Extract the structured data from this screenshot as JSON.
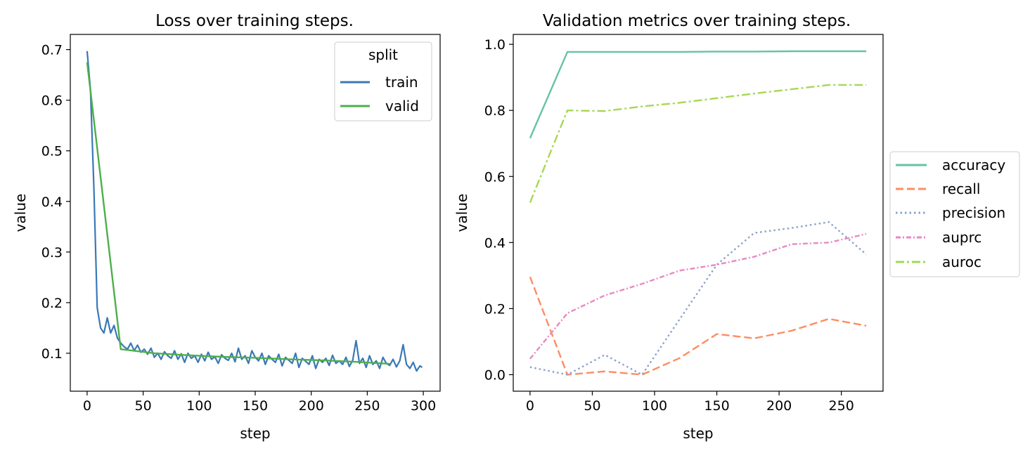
{
  "chart_data": [
    {
      "type": "line",
      "title": "Loss over training steps.",
      "xlabel": "step",
      "ylabel": "value",
      "xlim": [
        -15,
        315
      ],
      "ylim": [
        0.025,
        0.73
      ],
      "xticks": [
        0,
        50,
        100,
        150,
        200,
        250,
        300
      ],
      "yticks": [
        0.1,
        0.2,
        0.3,
        0.4,
        0.5,
        0.6,
        0.7
      ],
      "legend": {
        "title": "split",
        "position": "top-right"
      },
      "series": [
        {
          "name": "train",
          "color": "#3a78b5",
          "dash": "",
          "x": [
            0,
            3,
            6,
            9,
            12,
            15,
            18,
            21,
            24,
            27,
            30,
            33,
            36,
            39,
            42,
            45,
            48,
            51,
            54,
            57,
            60,
            63,
            66,
            69,
            72,
            75,
            78,
            81,
            84,
            87,
            90,
            93,
            96,
            99,
            102,
            105,
            108,
            111,
            114,
            117,
            120,
            123,
            126,
            129,
            132,
            135,
            138,
            141,
            144,
            147,
            150,
            153,
            156,
            159,
            162,
            165,
            168,
            171,
            174,
            177,
            180,
            183,
            186,
            189,
            192,
            195,
            198,
            201,
            204,
            207,
            210,
            213,
            216,
            219,
            222,
            225,
            228,
            231,
            234,
            237,
            240,
            243,
            246,
            249,
            252,
            255,
            258,
            261,
            264,
            267,
            270,
            273,
            276,
            279,
            282,
            285,
            288,
            291,
            294,
            297,
            299
          ],
          "y": [
            0.697,
            0.62,
            0.43,
            0.19,
            0.15,
            0.14,
            0.17,
            0.14,
            0.155,
            0.13,
            0.12,
            0.113,
            0.108,
            0.12,
            0.105,
            0.116,
            0.102,
            0.108,
            0.098,
            0.11,
            0.092,
            0.1,
            0.088,
            0.103,
            0.095,
            0.09,
            0.105,
            0.088,
            0.099,
            0.082,
            0.1,
            0.09,
            0.095,
            0.082,
            0.098,
            0.085,
            0.102,
            0.088,
            0.093,
            0.08,
            0.097,
            0.09,
            0.086,
            0.1,
            0.083,
            0.11,
            0.088,
            0.095,
            0.08,
            0.105,
            0.092,
            0.085,
            0.1,
            0.078,
            0.095,
            0.088,
            0.082,
            0.098,
            0.075,
            0.092,
            0.086,
            0.08,
            0.1,
            0.072,
            0.09,
            0.084,
            0.078,
            0.095,
            0.07,
            0.088,
            0.082,
            0.09,
            0.076,
            0.096,
            0.08,
            0.085,
            0.078,
            0.092,
            0.074,
            0.086,
            0.125,
            0.08,
            0.09,
            0.072,
            0.095,
            0.078,
            0.085,
            0.07,
            0.092,
            0.08,
            0.076,
            0.088,
            0.073,
            0.085,
            0.117,
            0.078,
            0.07,
            0.082,
            0.065,
            0.075,
            0.072
          ]
        },
        {
          "name": "valid",
          "color": "#4daf4a",
          "dash": "",
          "x": [
            0,
            30,
            60,
            90,
            120,
            150,
            180,
            210,
            240,
            270
          ],
          "y": [
            0.675,
            0.108,
            0.1,
            0.096,
            0.093,
            0.091,
            0.088,
            0.086,
            0.083,
            0.079
          ]
        }
      ]
    },
    {
      "type": "line",
      "title": "Validation metrics over training steps.",
      "xlabel": "step",
      "ylabel": "value",
      "xlim": [
        -13.5,
        283.5
      ],
      "ylim": [
        -0.05,
        1.03
      ],
      "xticks": [
        0,
        50,
        100,
        150,
        200,
        250
      ],
      "yticks": [
        0.0,
        0.2,
        0.4,
        0.6,
        0.8,
        1.0
      ],
      "legend": {
        "position": "outside-right"
      },
      "series": [
        {
          "name": "accuracy",
          "color": "#66c2a5",
          "dash": "",
          "x": [
            0,
            30,
            60,
            90,
            120,
            150,
            180,
            210,
            240,
            270
          ],
          "y": [
            0.716,
            0.977,
            0.977,
            0.977,
            0.977,
            0.978,
            0.978,
            0.979,
            0.979,
            0.979
          ]
        },
        {
          "name": "recall",
          "color": "#fc8d62",
          "dash": "11 5",
          "x": [
            0,
            30,
            60,
            90,
            120,
            150,
            180,
            210,
            240,
            270
          ],
          "y": [
            0.296,
            0.0,
            0.01,
            0.0,
            0.05,
            0.123,
            0.11,
            0.133,
            0.169,
            0.148
          ]
        },
        {
          "name": "precision",
          "color": "#8da0cb",
          "dash": "2.5 4",
          "x": [
            0,
            30,
            60,
            90,
            120,
            150,
            180,
            210,
            240,
            270
          ],
          "y": [
            0.023,
            0.0,
            0.06,
            0.0,
            0.167,
            0.333,
            0.429,
            0.444,
            0.462,
            0.364
          ]
        },
        {
          "name": "auprc",
          "color": "#e78ac3",
          "dash": "7 3 2 3",
          "x": [
            0,
            30,
            60,
            90,
            120,
            150,
            180,
            210,
            240,
            270
          ],
          "y": [
            0.048,
            0.186,
            0.24,
            0.275,
            0.315,
            0.333,
            0.357,
            0.395,
            0.4,
            0.426
          ]
        },
        {
          "name": "auroc",
          "color": "#a6d854",
          "dash": "12 4 3 4",
          "x": [
            0,
            30,
            60,
            90,
            120,
            150,
            180,
            210,
            240,
            270
          ],
          "y": [
            0.521,
            0.8,
            0.798,
            0.812,
            0.823,
            0.837,
            0.851,
            0.864,
            0.877,
            0.877
          ]
        }
      ]
    }
  ]
}
